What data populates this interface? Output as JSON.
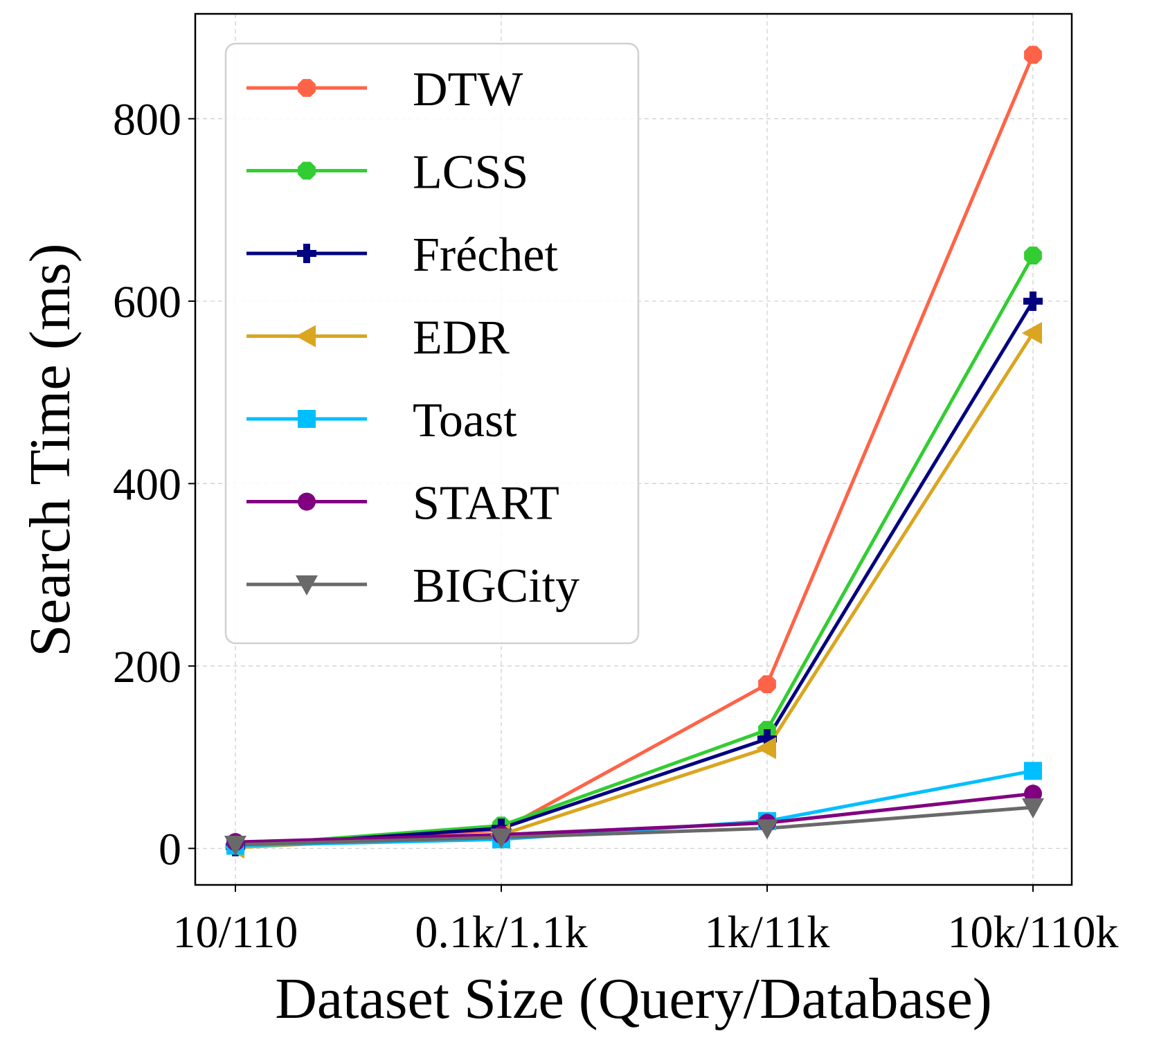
{
  "chart_data": {
    "type": "line",
    "title": "",
    "xlabel": "Dataset Size (Query/Database)",
    "ylabel": "Search Time (ms)",
    "categories": [
      "10/110",
      "0.1k/1.1k",
      "1k/11k",
      "10k/110k"
    ],
    "ylim": [
      -40,
      915
    ],
    "yticks": [
      0,
      200,
      400,
      600,
      800
    ],
    "grid": true,
    "legend_position": "upper-left",
    "series": [
      {
        "name": "DTW",
        "color": "#ff6347",
        "marker": "octagon",
        "values": [
          5,
          20,
          180,
          870
        ]
      },
      {
        "name": "LCSS",
        "color": "#32cd32",
        "marker": "octagon",
        "values": [
          3,
          25,
          130,
          650
        ]
      },
      {
        "name": "Fréchet",
        "color": "#000080",
        "marker": "plus",
        "values": [
          2,
          22,
          120,
          600
        ]
      },
      {
        "name": "EDR",
        "color": "#daa520",
        "marker": "triangle-left",
        "values": [
          1,
          15,
          110,
          565
        ]
      },
      {
        "name": "Toast",
        "color": "#00bfff",
        "marker": "square",
        "values": [
          3,
          10,
          30,
          85
        ]
      },
      {
        "name": "START",
        "color": "#800080",
        "marker": "circle",
        "values": [
          7,
          15,
          28,
          60
        ]
      },
      {
        "name": "BIGCity",
        "color": "#696969",
        "marker": "triangle-down",
        "values": [
          4,
          12,
          22,
          45
        ]
      }
    ]
  }
}
